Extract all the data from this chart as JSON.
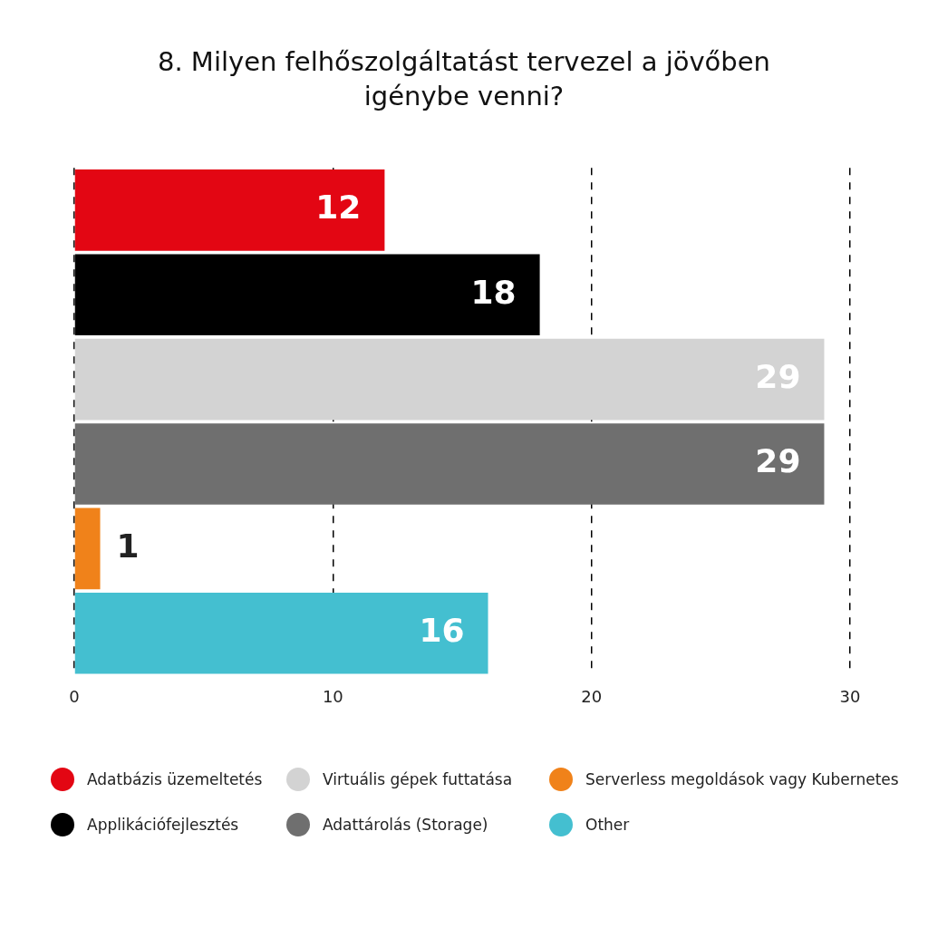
{
  "chart_data": {
    "type": "bar",
    "title": "8. Milyen felhőszolgáltatást tervezel a jövőben igénybe venni?",
    "orientation": "horizontal",
    "categories": [
      null,
      null,
      null,
      null,
      null,
      null
    ],
    "series": [
      {
        "name": "Adatbázis üzemeltetés",
        "color": "#e30613",
        "values": [
          12,
          null,
          null,
          null,
          null,
          null
        ]
      },
      {
        "name": "Applikációfejlesztés",
        "color": "#000000",
        "values": [
          null,
          18,
          null,
          null,
          null,
          null
        ]
      },
      {
        "name": "Virtuális gépek futtatása",
        "color": "#d3d3d3",
        "values": [
          null,
          null,
          29,
          null,
          null,
          null
        ]
      },
      {
        "name": "Adattárolás (Storage)",
        "color": "#6f6f6f",
        "values": [
          null,
          null,
          null,
          29,
          null,
          null
        ]
      },
      {
        "name": "Serverless megoldások vagy Kubernetes",
        "color": "#f0821a",
        "values": [
          null,
          null,
          null,
          null,
          1,
          null
        ]
      },
      {
        "name": "Other",
        "color": "#44bfd0",
        "values": [
          null,
          null,
          null,
          null,
          null,
          16
        ]
      }
    ],
    "xlim": [
      0,
      30
    ],
    "xticks": [
      0,
      10,
      20,
      30
    ],
    "grid": "x",
    "legend": "bottom",
    "data_labels": true
  }
}
